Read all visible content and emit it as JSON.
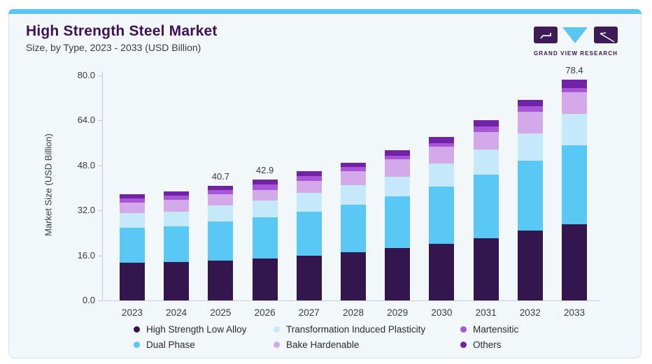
{
  "header": {
    "title": "High Strength Steel Market",
    "subtitle": "Size, by Type, 2023 - 2033 (USD Billion)"
  },
  "logo": {
    "caption": "GRAND VIEW RESEARCH",
    "mark_purple": "#3e1a57",
    "mark_blue": "#5bc6f0"
  },
  "chart_data": {
    "type": "bar",
    "stacked": true,
    "title": "High Strength Steel Market Size, by Type, 2023 - 2033 (USD Billion)",
    "xlabel": "",
    "ylabel": "Market Size (USD Billion)",
    "ylim": [
      0,
      80
    ],
    "ytick_labels": [
      "0.0",
      "16.0",
      "32.0",
      "48.0",
      "64.0",
      "80.0"
    ],
    "yticks": [
      0,
      16,
      32,
      48,
      64,
      80
    ],
    "grid": false,
    "legend_position": "bottom",
    "categories": [
      "2023",
      "2024",
      "2025",
      "2026",
      "2027",
      "2028",
      "2029",
      "2030",
      "2031",
      "2032",
      "2033"
    ],
    "series": [
      {
        "name": "High Strength Low Alloy",
        "color": "#34164f",
        "values": [
          13.5,
          13.7,
          14.2,
          15.0,
          16.0,
          17.1,
          18.7,
          20.2,
          22.2,
          24.8,
          27.1
        ]
      },
      {
        "name": "Dual Phase",
        "color": "#5ac8f5",
        "values": [
          12.2,
          12.6,
          13.9,
          14.5,
          15.4,
          16.8,
          18.2,
          20.3,
          22.4,
          24.9,
          28.0
        ]
      },
      {
        "name": "Transformation Induced Plasticity",
        "color": "#c5e8fb",
        "values": [
          5.2,
          5.2,
          5.6,
          6.1,
          6.7,
          7.0,
          7.1,
          8.2,
          8.9,
          9.7,
          11.2
        ]
      },
      {
        "name": "Bake Hardenable",
        "color": "#d4a9ea",
        "values": [
          3.8,
          4.2,
          3.9,
          3.6,
          4.4,
          5.0,
          6.0,
          5.8,
          6.4,
          7.5,
          7.6
        ]
      },
      {
        "name": "Martensitic",
        "color": "#a855d6",
        "values": [
          1.5,
          1.5,
          1.5,
          2.0,
          1.6,
          1.4,
          1.4,
          1.4,
          1.8,
          2.0,
          1.5
        ]
      },
      {
        "name": "Others",
        "color": "#6e24a4",
        "values": [
          1.4,
          1.5,
          1.6,
          1.7,
          1.7,
          1.7,
          1.9,
          2.1,
          2.2,
          2.3,
          3.0
        ]
      }
    ],
    "bar_total_labels": {
      "2025": "40.7",
      "2026": "42.9",
      "2033": "78.4"
    },
    "legend_columns": [
      [
        "High Strength Low Alloy",
        "Dual Phase"
      ],
      [
        "Transformation Induced Plasticity",
        "Bake Hardenable"
      ],
      [
        "Martensitic",
        "Others"
      ]
    ]
  }
}
